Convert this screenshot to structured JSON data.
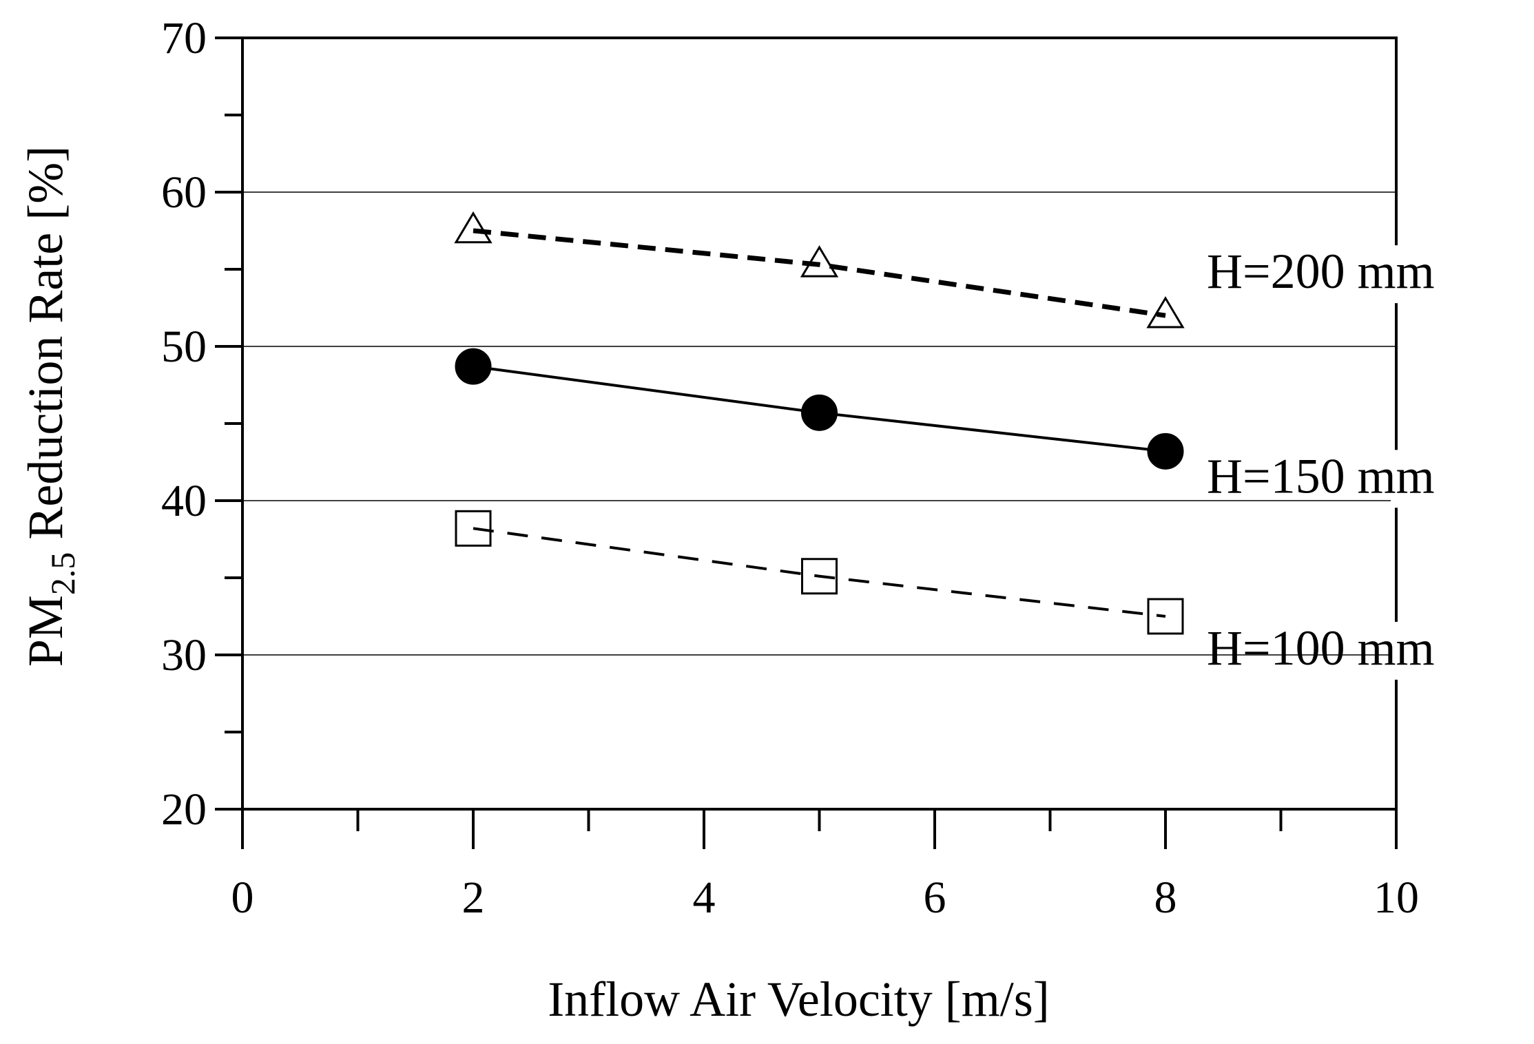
{
  "chart_data": {
    "type": "line",
    "title": "",
    "xlabel": "Inflow Air Velocity [m/s]",
    "ylabel": {
      "main": "PM",
      "subscript": "2.5",
      "rest": " Reduction Rate [%]"
    },
    "xlim": [
      0,
      10
    ],
    "ylim": [
      20,
      70
    ],
    "x_major_ticks": [
      0,
      2,
      4,
      6,
      8,
      10
    ],
    "x_minor_ticks": [
      1,
      3,
      5,
      7,
      9
    ],
    "y_major_ticks": [
      20,
      30,
      40,
      50,
      60,
      70
    ],
    "y_minor_ticks": [
      25,
      35,
      45,
      55,
      65
    ],
    "x_tick_labels": [
      "0",
      "2",
      "4",
      "6",
      "8",
      "10"
    ],
    "y_tick_labels": [
      "20",
      "30",
      "40",
      "50",
      "60",
      "70"
    ],
    "gridlines_y": [
      30,
      40,
      50,
      60
    ],
    "series": [
      {
        "name": "H=200 mm",
        "marker": "triangle-open",
        "line": "dashed-bold",
        "x": [
          2,
          5,
          8
        ],
        "values": [
          57.5,
          55.3,
          52.0
        ]
      },
      {
        "name": "H=150 mm",
        "marker": "circle-filled",
        "line": "solid",
        "x": [
          2,
          5,
          8
        ],
        "values": [
          48.7,
          45.7,
          43.2
        ]
      },
      {
        "name": "H=100 mm",
        "marker": "square-open",
        "line": "dashed",
        "x": [
          2,
          5,
          8
        ],
        "values": [
          38.2,
          35.1,
          32.5
        ]
      }
    ]
  }
}
